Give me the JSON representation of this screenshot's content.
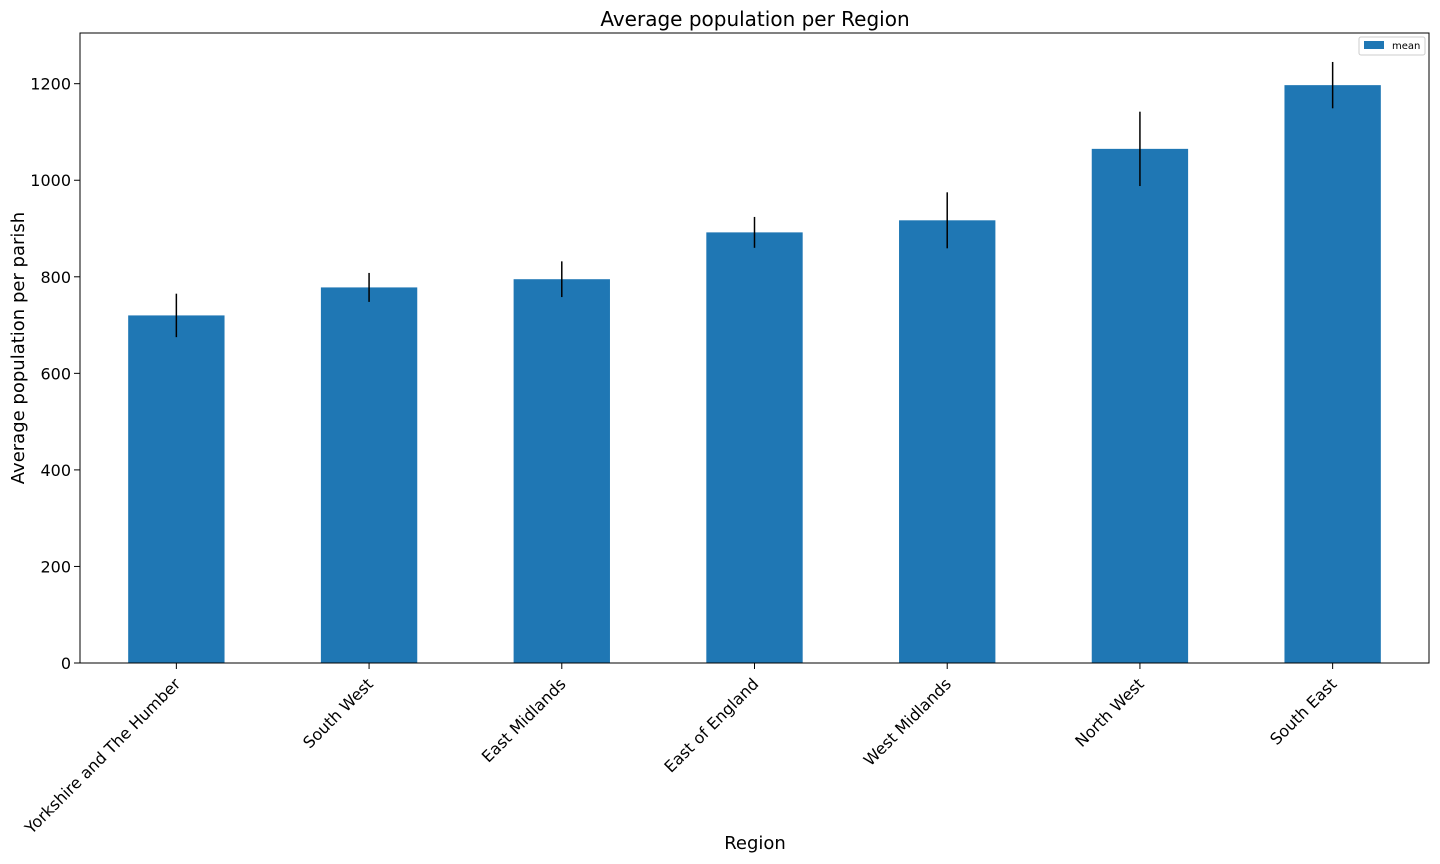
{
  "chart_data": {
    "type": "bar",
    "title": "Average population per Region",
    "xlabel": "Region",
    "ylabel": "Average population per parish",
    "categories": [
      "Yorkshire and The Humber",
      "South West",
      "East Midlands",
      "East of England",
      "West Midlands",
      "North West",
      "South East"
    ],
    "series": [
      {
        "name": "mean",
        "values": [
          720,
          778,
          795,
          892,
          917,
          1065,
          1197
        ],
        "error": [
          45,
          30,
          37,
          32,
          58,
          77,
          48
        ]
      }
    ],
    "ylim": [
      0,
      1305
    ],
    "yticks": [
      0,
      200,
      400,
      600,
      800,
      1000,
      1200
    ],
    "legend_position": "top-right",
    "grid": false,
    "bar_color": "#1f77b4"
  }
}
